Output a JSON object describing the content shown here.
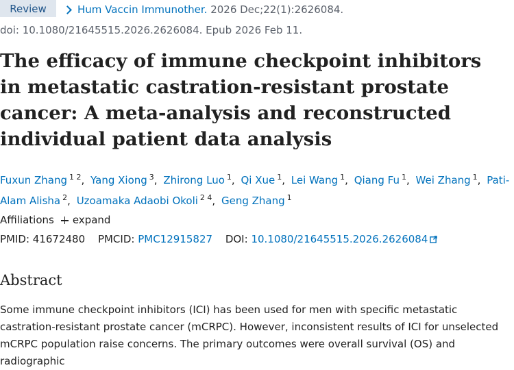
{
  "header": {
    "badge": "Review",
    "journal": "Hum Vaccin Immunother.",
    "issue": "2026 Dec;22(1):2626084.",
    "doi_line": "doi: 10.1080/21645515.2026.2626084. Epub 2026 Feb 11."
  },
  "article": {
    "title": "The efficacy of immune checkpoint inhibitors in metastatic castration-resistant prostate cancer: A meta-analysis and reconstructed individual patient data analysis"
  },
  "authors": [
    {
      "name": "Fuxun Zhang",
      "sup": "1 2"
    },
    {
      "name": "Yang Xiong",
      "sup": "3"
    },
    {
      "name": "Zhirong Luo",
      "sup": "1"
    },
    {
      "name": "Qi Xue",
      "sup": "1"
    },
    {
      "name": "Lei Wang",
      "sup": "1"
    },
    {
      "name": "Qiang Fu",
      "sup": "1"
    },
    {
      "name": "Wei Zhang",
      "sup": "1"
    },
    {
      "name": "Pati-Alam Alisha",
      "sup": "2"
    },
    {
      "name": "Uzoamaka Adaobi Okoli",
      "sup": "2 4"
    },
    {
      "name": "Geng Zhang",
      "sup": "1"
    }
  ],
  "affiliations": {
    "label": "Affiliations",
    "expand": "expand"
  },
  "ids": {
    "pmid_label": "PMID:",
    "pmid": "41672480",
    "pmcid_label": "PMCID:",
    "pmcid": "PMC12915827",
    "doi_label": "DOI:",
    "doi": "10.1080/21645515.2026.2626084"
  },
  "abstract": {
    "heading": "Abstract",
    "text": "Some immune checkpoint inhibitors (ICI) has been used for men with specific metastatic castration-resistant prostate cancer (mCRPC). However, inconsistent results of ICI for unselected mCRPC population raise concerns. The primary outcomes were overall survival (OS) and radiographic"
  },
  "colors": {
    "link": "#0071bc",
    "badge_bg": "#dfe6ee",
    "text": "#212121",
    "meta": "#5b616b"
  }
}
